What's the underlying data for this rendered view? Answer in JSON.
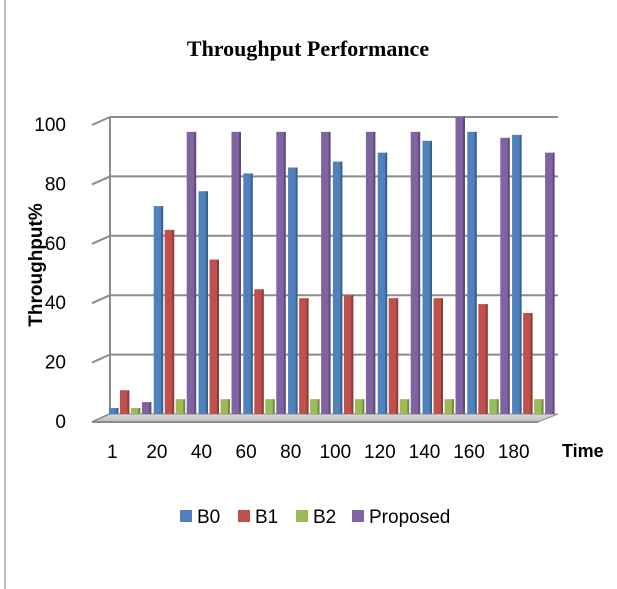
{
  "chart_data": {
    "type": "bar",
    "title": "Throughput Performance",
    "xlabel": "Time",
    "ylabel": "Throughput%",
    "categories": [
      "1",
      "20",
      "40",
      "60",
      "80",
      "100",
      "120",
      "140",
      "160",
      "180"
    ],
    "yticks": [
      "0",
      "20",
      "40",
      "60",
      "80",
      "100"
    ],
    "ylim": [
      0,
      100
    ],
    "grid": true,
    "legend_position": "bottom",
    "series": [
      {
        "name": "B0",
        "color": "#4F81BD",
        "values": [
          2,
          70,
          75,
          81,
          83,
          85,
          88,
          92,
          95,
          94
        ]
      },
      {
        "name": "B1",
        "color": "#C0504D",
        "values": [
          8,
          62,
          52,
          42,
          39,
          40,
          39,
          39,
          37,
          34
        ]
      },
      {
        "name": "B2",
        "color": "#9BBB59",
        "values": [
          2,
          5,
          5,
          5,
          5,
          5,
          5,
          5,
          5,
          5
        ]
      },
      {
        "name": "Proposed",
        "color": "#8064A2",
        "values": [
          4,
          95,
          95,
          95,
          95,
          95,
          95,
          100,
          93,
          88
        ]
      }
    ]
  }
}
